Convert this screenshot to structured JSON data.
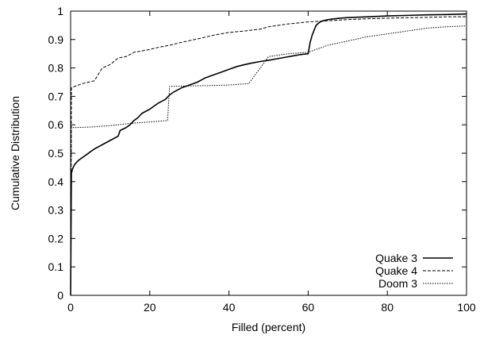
{
  "chart_data": {
    "type": "line",
    "title": "",
    "xlabel": "Filled (percent)",
    "ylabel": "Cumulative Distribution",
    "xlim": [
      0,
      100
    ],
    "ylim": [
      0,
      1
    ],
    "xticks": [
      "0",
      "20",
      "40",
      "60",
      "80",
      "100"
    ],
    "yticks": [
      "0",
      "0.1",
      "0.2",
      "0.3",
      "0.4",
      "0.5",
      "0.6",
      "0.7",
      "0.8",
      "0.9",
      "1"
    ],
    "grid": false,
    "legend_position": "bottom-right",
    "series": [
      {
        "name": "Quake 3",
        "style": "solid",
        "x": [
          0,
          0.2,
          0.5,
          1,
          2,
          3,
          4,
          5,
          6,
          8,
          10,
          12,
          12.5,
          14,
          15,
          16,
          17,
          18,
          20,
          22,
          24,
          25,
          26,
          28,
          30,
          32,
          34,
          36,
          38,
          40,
          42,
          44,
          46,
          48,
          50,
          52,
          54,
          56,
          58,
          60,
          60.5,
          61,
          62,
          63,
          64,
          65,
          66,
          68,
          70,
          75,
          80,
          85,
          90,
          95,
          100
        ],
        "y": [
          0.0,
          0.43,
          0.445,
          0.46,
          0.475,
          0.485,
          0.495,
          0.505,
          0.515,
          0.53,
          0.545,
          0.56,
          0.58,
          0.59,
          0.6,
          0.615,
          0.625,
          0.64,
          0.655,
          0.675,
          0.69,
          0.705,
          0.715,
          0.73,
          0.74,
          0.75,
          0.765,
          0.775,
          0.785,
          0.795,
          0.805,
          0.812,
          0.818,
          0.823,
          0.827,
          0.832,
          0.837,
          0.842,
          0.847,
          0.85,
          0.89,
          0.915,
          0.95,
          0.962,
          0.967,
          0.97,
          0.972,
          0.975,
          0.977,
          0.98,
          0.983,
          0.985,
          0.987,
          0.988,
          0.99
        ]
      },
      {
        "name": "Quake 4",
        "style": "dashed",
        "x": [
          0,
          0.2,
          1,
          2,
          3,
          6,
          8,
          10,
          12,
          14,
          16,
          18,
          20,
          22,
          25,
          28,
          30,
          33,
          36,
          40,
          44,
          48,
          50,
          55,
          60,
          65,
          70,
          75,
          80,
          85,
          90,
          95,
          100
        ],
        "y": [
          0.0,
          0.73,
          0.735,
          0.74,
          0.745,
          0.755,
          0.8,
          0.812,
          0.835,
          0.84,
          0.855,
          0.86,
          0.865,
          0.872,
          0.88,
          0.89,
          0.896,
          0.905,
          0.915,
          0.925,
          0.93,
          0.937,
          0.945,
          0.955,
          0.962,
          0.966,
          0.97,
          0.973,
          0.975,
          0.977,
          0.978,
          0.98,
          0.98
        ]
      },
      {
        "name": "Doom 3",
        "style": "dotted",
        "x": [
          0,
          0.2,
          5,
          10,
          15,
          20,
          24.5,
          25,
          30,
          35,
          40,
          45,
          50,
          55,
          60,
          61,
          65,
          70,
          75,
          80,
          85,
          90,
          95,
          100
        ],
        "y": [
          0.0,
          0.59,
          0.592,
          0.597,
          0.605,
          0.61,
          0.615,
          0.735,
          0.737,
          0.738,
          0.74,
          0.745,
          0.84,
          0.85,
          0.855,
          0.86,
          0.88,
          0.895,
          0.91,
          0.92,
          0.93,
          0.94,
          0.945,
          0.948
        ]
      }
    ]
  }
}
